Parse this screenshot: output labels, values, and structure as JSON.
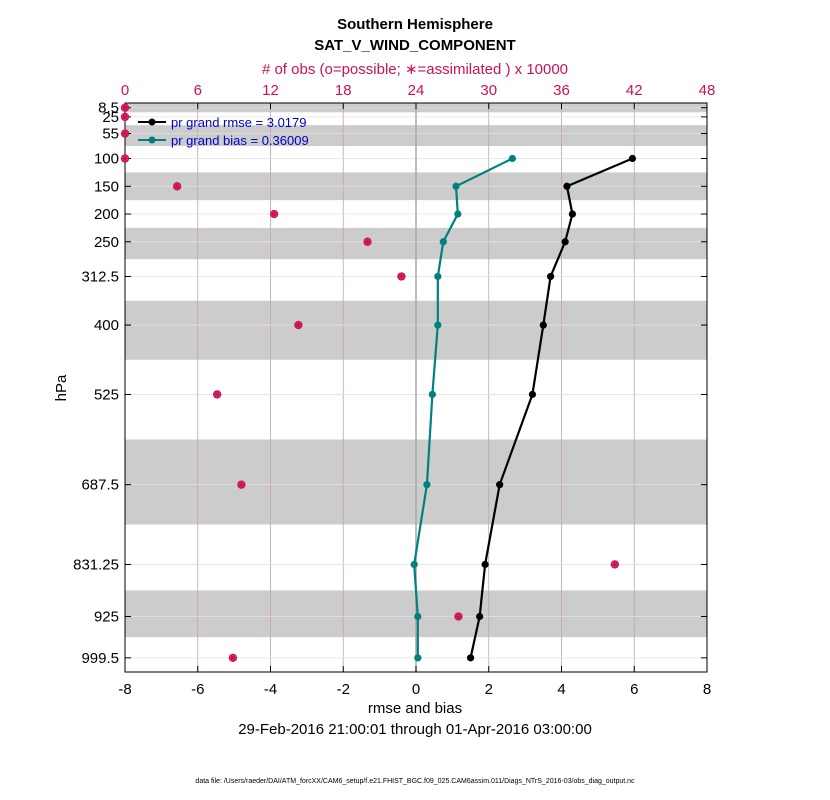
{
  "chart_data": {
    "type": "line",
    "title": "Southern Hemisphere",
    "subtitle": "SAT_V_WIND_COMPONENT",
    "top_axis_label": "# of obs (o=possible; ∗=assimilated ) x 10000",
    "xlabel": "rmse and bias",
    "ylabel": "hPa",
    "date_range": "29-Feb-2016 21:00:01 through 01-Apr-2016 03:00:00",
    "footnote": "data file: /Users/raeder/DAI/ATM_forcXX/CAM6_setup/f.e21.FHIST_BGC.f09_025.CAM6assim.011/Diags_NTrS_2016-03/obs_diag_output.nc",
    "xlim": [
      -8,
      8
    ],
    "x_ticks": [
      "-8",
      "-6",
      "-4",
      "-2",
      "0",
      "2",
      "4",
      "6",
      "8"
    ],
    "top_xlim": [
      0,
      48
    ],
    "top_ticks": [
      "0",
      "6",
      "12",
      "18",
      "24",
      "30",
      "36",
      "42",
      "48"
    ],
    "y_levels": [
      8.5,
      25,
      55,
      100,
      150,
      200,
      250,
      312.5,
      400,
      525,
      687.5,
      831.25,
      925,
      999.5
    ],
    "y_tick_labels": [
      "8.5",
      "25",
      "55",
      "100",
      "150",
      "200",
      "250",
      "312.5",
      "400",
      "525",
      "687.5",
      "831.25",
      "925",
      "999.5"
    ],
    "ylim_hpa": [
      1025,
      0
    ],
    "series": [
      {
        "name": "pr grand rmse = 3.0179",
        "color": "#000000",
        "levels": [
          100,
          150,
          200,
          250,
          312.5,
          400,
          525,
          687.5,
          831.25,
          925,
          999.5
        ],
        "values": [
          5.95,
          4.15,
          4.3,
          4.1,
          3.7,
          3.5,
          3.2,
          2.3,
          1.9,
          1.75,
          1.5
        ]
      },
      {
        "name": "pr grand bias = 0.36009",
        "color": "#008080",
        "levels": [
          100,
          150,
          200,
          250,
          312.5,
          400,
          525,
          687.5,
          831.25,
          925,
          999.5
        ],
        "values": [
          2.65,
          1.1,
          1.15,
          0.75,
          0.6,
          0.6,
          0.45,
          0.3,
          -0.05,
          0.05,
          0.05
        ]
      }
    ],
    "obs_counts": {
      "unit": "x 10000",
      "color": "#cc1156",
      "possible": [
        {
          "level": 8.5,
          "count": 0.0
        },
        {
          "level": 25,
          "count": 0.0
        },
        {
          "level": 55,
          "count": 0.0
        },
        {
          "level": 100,
          "count": 0.0
        },
        {
          "level": 150,
          "count": 4.3
        },
        {
          "level": 200,
          "count": 12.3
        },
        {
          "level": 250,
          "count": 20.0
        },
        {
          "level": 312.5,
          "count": 22.8
        },
        {
          "level": 400,
          "count": 14.3
        },
        {
          "level": 525,
          "count": 7.6
        },
        {
          "level": 687.5,
          "count": 9.6
        },
        {
          "level": 831.25,
          "count": 40.4
        },
        {
          "level": 925,
          "count": 27.5
        },
        {
          "level": 999.5,
          "count": 8.9
        }
      ],
      "assimilated": [
        {
          "level": 8.5,
          "count": 0.0
        },
        {
          "level": 25,
          "count": 0.0
        },
        {
          "level": 55,
          "count": 0.0
        },
        {
          "level": 100,
          "count": 0.0
        },
        {
          "level": 150,
          "count": 4.3
        },
        {
          "level": 200,
          "count": 12.3
        },
        {
          "level": 250,
          "count": 20.0
        },
        {
          "level": 312.5,
          "count": 22.8
        },
        {
          "level": 400,
          "count": 14.3
        },
        {
          "level": 525,
          "count": 7.6
        },
        {
          "level": 687.5,
          "count": 9.6
        },
        {
          "level": 831.25,
          "count": 40.4
        },
        {
          "level": 925,
          "count": 27.5
        },
        {
          "level": 999.5,
          "count": 8.9
        }
      ]
    },
    "grid": true,
    "legend_position": "top-left"
  }
}
